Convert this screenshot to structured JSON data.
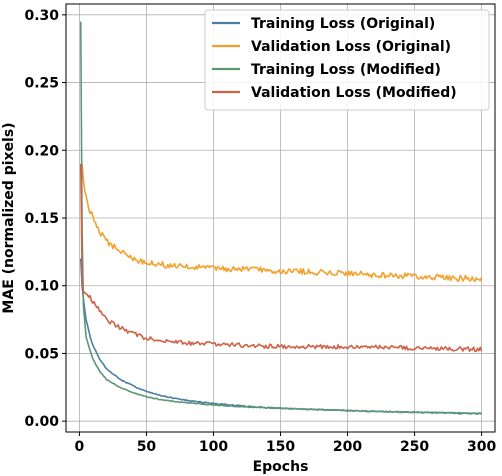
{
  "chart_data": {
    "type": "line",
    "title": "",
    "xlabel": "Epochs",
    "ylabel": "MAE (normalized pixels)",
    "xlim": [
      -10,
      310
    ],
    "ylim": [
      -0.008,
      0.308
    ],
    "xticks": [
      0,
      50,
      100,
      150,
      200,
      250,
      300
    ],
    "yticks": [
      0.0,
      0.05,
      0.1,
      0.15,
      0.2,
      0.25,
      0.3
    ],
    "ytick_labels": [
      "0.00",
      "0.05",
      "0.10",
      "0.15",
      "0.20",
      "0.25",
      "0.30"
    ],
    "grid": true,
    "legend_position": "top-right",
    "series": [
      {
        "name": "Training Loss (Original)",
        "color": "#4a7fa3",
        "x": [
          1,
          2,
          3,
          5,
          8,
          10,
          15,
          20,
          30,
          40,
          50,
          60,
          75,
          100,
          125,
          150,
          200,
          250,
          300
        ],
        "values": [
          0.12,
          0.1,
          0.09,
          0.075,
          0.062,
          0.056,
          0.046,
          0.039,
          0.031,
          0.026,
          0.022,
          0.019,
          0.016,
          0.013,
          0.011,
          0.0095,
          0.0078,
          0.0065,
          0.0055
        ]
      },
      {
        "name": "Validation Loss (Original)",
        "color": "#f5a02a",
        "x": [
          1,
          2,
          3,
          5,
          8,
          10,
          15,
          20,
          30,
          40,
          50,
          60,
          75,
          100,
          125,
          150,
          200,
          250,
          300
        ],
        "values": [
          0.185,
          0.19,
          0.178,
          0.165,
          0.155,
          0.15,
          0.14,
          0.133,
          0.126,
          0.12,
          0.117,
          0.116,
          0.114,
          0.113,
          0.112,
          0.111,
          0.109,
          0.107,
          0.105
        ]
      },
      {
        "name": "Training Loss (Modified)",
        "color": "#5e9674",
        "x": [
          1,
          2,
          3,
          5,
          8,
          10,
          15,
          20,
          30,
          40,
          50,
          60,
          75,
          100,
          125,
          150,
          200,
          250,
          300
        ],
        "values": [
          0.295,
          0.14,
          0.085,
          0.062,
          0.052,
          0.046,
          0.037,
          0.031,
          0.025,
          0.021,
          0.018,
          0.016,
          0.014,
          0.012,
          0.0105,
          0.0095,
          0.0078,
          0.0066,
          0.0058
        ]
      },
      {
        "name": "Validation Loss (Modified)",
        "color": "#cf6147",
        "x": [
          1,
          2,
          3,
          5,
          8,
          10,
          15,
          20,
          30,
          40,
          50,
          60,
          75,
          100,
          125,
          150,
          200,
          250,
          300
        ],
        "values": [
          0.19,
          0.11,
          0.095,
          0.095,
          0.092,
          0.088,
          0.082,
          0.075,
          0.069,
          0.065,
          0.061,
          0.06,
          0.058,
          0.057,
          0.056,
          0.055,
          0.055,
          0.054,
          0.053
        ]
      }
    ]
  }
}
